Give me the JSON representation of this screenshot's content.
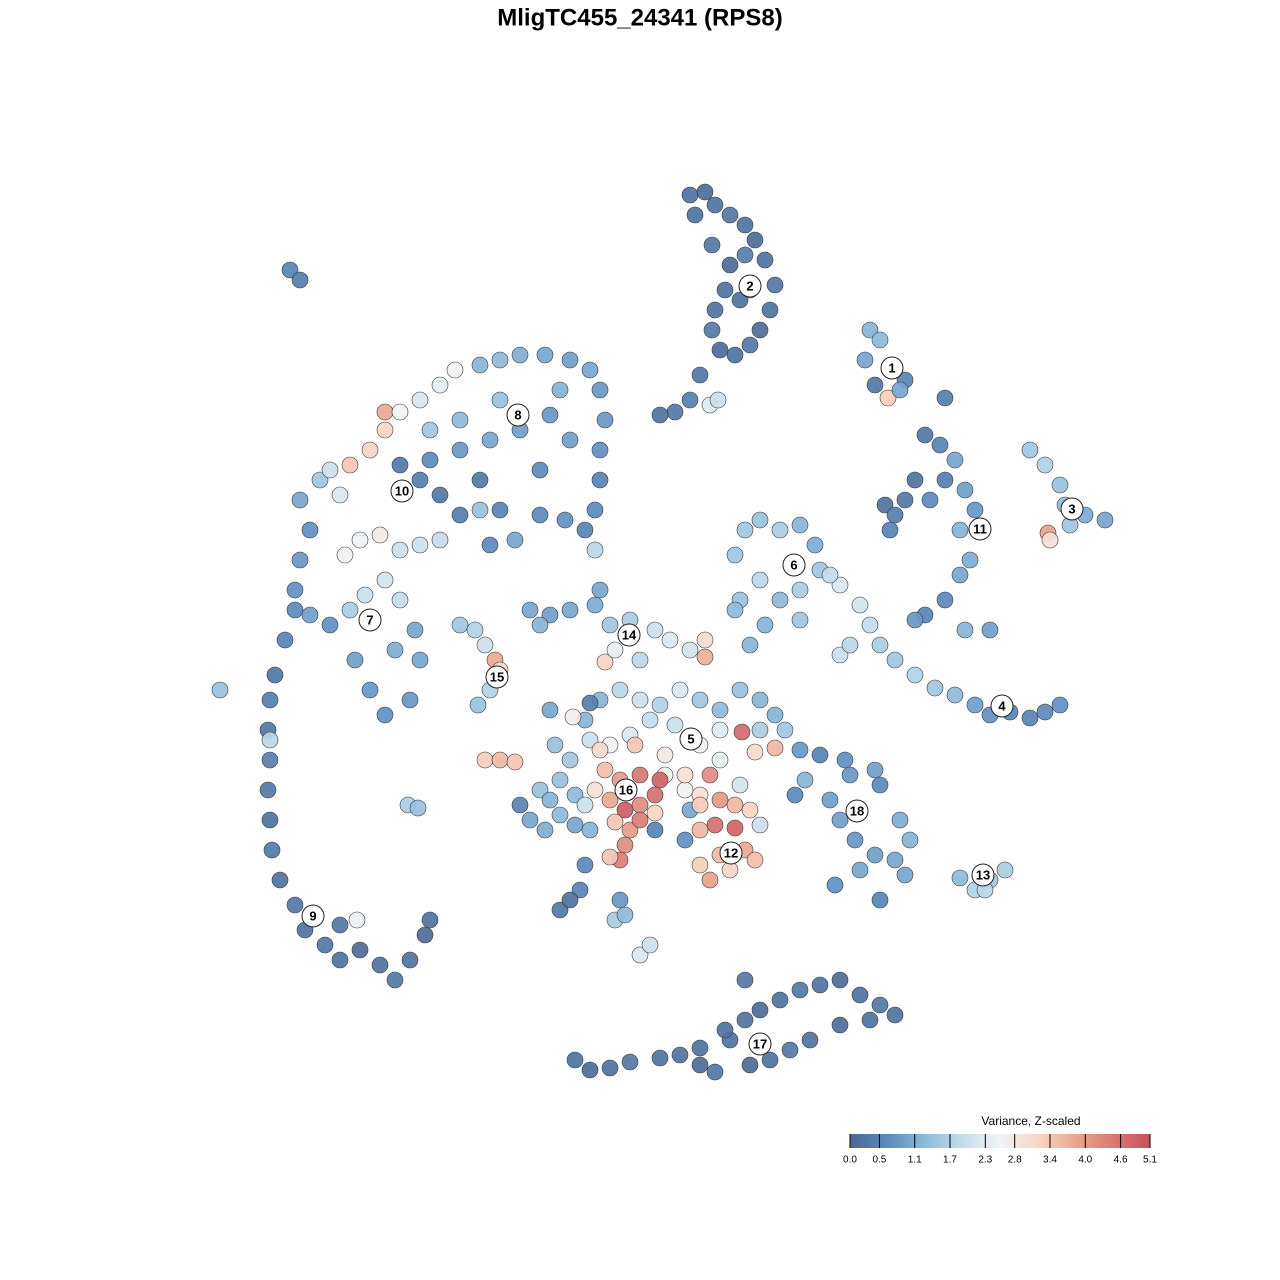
{
  "chart_data": {
    "type": "scatter",
    "title": "MligTC455_24341 (RPS8)",
    "xlim": [
      0,
      1280
    ],
    "ylim": [
      1280,
      0
    ],
    "series": [
      {
        "x": [
          690,
          705,
          715,
          730,
          745,
          755,
          765,
          775,
          770,
          760,
          750,
          735,
          720,
          712,
          715,
          725,
          730,
          745,
          740,
          700,
          690,
          675,
          660,
          710,
          718,
          695,
          750,
          712
        ],
        "y": [
          195,
          192,
          205,
          215,
          225,
          240,
          260,
          285,
          310,
          330,
          345,
          355,
          350,
          330,
          310,
          290,
          265,
          255,
          300,
          375,
          400,
          412,
          415,
          405,
          400,
          215,
          290,
          245
        ],
        "values": [
          0.2,
          0.1,
          0.2,
          0.3,
          0.2,
          0.1,
          0.2,
          0.3,
          0.2,
          0.1,
          0.3,
          0.2,
          0.1,
          0.3,
          0.2,
          0.2,
          0.1,
          0.4,
          0.2,
          0.3,
          0.4,
          0.3,
          0.2,
          2.3,
          2.0,
          0.2,
          0.8,
          0.3
        ]
      },
      {
        "x": [
          870,
          880,
          865,
          890,
          905,
          875,
          888,
          900,
          945
        ],
        "y": [
          330,
          340,
          360,
          370,
          380,
          385,
          398,
          390,
          398
        ],
        "values": [
          1.2,
          1.3,
          1.0,
          0.6,
          0.5,
          0.3,
          3.3,
          1.0,
          0.4
        ]
      },
      {
        "x": [
          925,
          940,
          955,
          945,
          965,
          930,
          905,
          885,
          895,
          975,
          960,
          970,
          960,
          945,
          925,
          915,
          965,
          990,
          915,
          890
        ],
        "y": [
          435,
          445,
          460,
          480,
          490,
          500,
          500,
          505,
          515,
          510,
          530,
          560,
          575,
          600,
          615,
          620,
          630,
          630,
          480,
          530
        ],
        "values": [
          0.3,
          0.5,
          1.0,
          0.4,
          0.9,
          0.6,
          0.3,
          0.2,
          0.4,
          0.8,
          1.2,
          1.1,
          1.0,
          0.6,
          0.5,
          0.8,
          1.2,
          0.9,
          0.2,
          0.5
        ]
      },
      {
        "x": [
          1030,
          1045,
          1065,
          1085,
          1105,
          1070,
          1048,
          1050,
          1060
        ],
        "y": [
          450,
          465,
          505,
          515,
          520,
          525,
          533,
          540,
          485
        ],
        "values": [
          1.5,
          1.7,
          1.3,
          1.1,
          1.0,
          1.5,
          3.9,
          3.0,
          1.4
        ]
      },
      {
        "x": [
          745,
          760,
          780,
          800,
          815,
          820,
          840,
          800,
          780,
          760,
          735,
          740,
          765,
          750,
          735,
          800,
          830
        ],
        "y": [
          530,
          520,
          530,
          525,
          545,
          570,
          585,
          590,
          600,
          580,
          555,
          600,
          625,
          645,
          610,
          620,
          575
        ],
        "values": [
          1.5,
          1.4,
          1.6,
          1.2,
          1.1,
          1.5,
          2.2,
          1.6,
          1.3,
          1.8,
          1.5,
          1.4,
          1.2,
          1.2,
          1.3,
          1.5,
          1.9
        ]
      },
      {
        "x": [
          860,
          870,
          880,
          895,
          915,
          935,
          955,
          975,
          990,
          1010,
          1030,
          1045,
          1060,
          840,
          850
        ],
        "y": [
          605,
          625,
          645,
          660,
          675,
          688,
          695,
          705,
          715,
          712,
          718,
          712,
          705,
          655,
          645
        ],
        "values": [
          2.1,
          1.9,
          1.6,
          1.5,
          1.7,
          1.5,
          1.3,
          0.9,
          0.7,
          0.5,
          0.5,
          0.6,
          0.7,
          2.0,
          1.8
        ]
      },
      {
        "x": [
          800,
          820,
          845,
          850,
          875,
          880,
          830,
          840,
          855,
          875,
          860,
          835,
          880,
          900,
          910,
          895,
          905,
          795,
          805
        ],
        "y": [
          750,
          755,
          760,
          775,
          770,
          785,
          800,
          820,
          840,
          855,
          870,
          885,
          900,
          820,
          840,
          860,
          875,
          795,
          780
        ],
        "values": [
          0.8,
          0.5,
          0.7,
          0.8,
          0.9,
          0.6,
          0.9,
          0.9,
          0.8,
          0.9,
          1.0,
          0.7,
          0.5,
          1.1,
          1.2,
          1.0,
          1.0,
          0.6,
          1.2
        ]
      },
      {
        "x": [
          960,
          975,
          990,
          1005,
          985
        ],
        "y": [
          878,
          890,
          880,
          870,
          890
        ],
        "values": [
          1.3,
          1.7,
          1.5,
          1.6,
          1.8
        ]
      },
      {
        "x": [
          575,
          590,
          610,
          630,
          660,
          680,
          700,
          715,
          730,
          745,
          760,
          780,
          800,
          820,
          840,
          860,
          880,
          895,
          870,
          840,
          810,
          790,
          770,
          750,
          725,
          745,
          700
        ],
        "y": [
          1060,
          1070,
          1068,
          1062,
          1058,
          1055,
          1065,
          1072,
          1040,
          1020,
          1010,
          1000,
          990,
          985,
          980,
          995,
          1005,
          1015,
          1020,
          1025,
          1040,
          1050,
          1060,
          1065,
          1030,
          980,
          1048
        ],
        "values": [
          0.2,
          0.1,
          0.2,
          0.3,
          0.2,
          0.2,
          0.1,
          0.3,
          0.2,
          0.2,
          0.1,
          0.2,
          0.3,
          0.2,
          0.1,
          0.2,
          0.3,
          0.2,
          0.2,
          0.1,
          0.2,
          0.3,
          0.2,
          0.1,
          0.2,
          0.3,
          0.2
        ]
      },
      {
        "x": [
          290,
          300,
          275,
          270,
          268,
          270,
          268,
          270,
          272,
          280,
          295,
          305,
          325,
          340,
          360,
          380,
          395,
          410,
          425,
          430,
          340,
          357,
          285,
          295,
          270
        ],
        "y": [
          270,
          280,
          675,
          700,
          730,
          760,
          790,
          820,
          850,
          880,
          905,
          930,
          945,
          960,
          950,
          965,
          980,
          960,
          935,
          920,
          925,
          920,
          640,
          610,
          740
        ],
        "values": [
          0.5,
          0.4,
          0.3,
          0.4,
          0.3,
          0.4,
          0.3,
          0.2,
          0.3,
          0.2,
          0.3,
          0.2,
          0.3,
          0.2,
          0.1,
          0.2,
          0.3,
          0.2,
          0.1,
          0.2,
          0.3,
          2.5,
          0.5,
          0.6,
          1.8
        ]
      },
      {
        "x": [
          300,
          310,
          300,
          295,
          310,
          330,
          350,
          365,
          385,
          400,
          355,
          370,
          385,
          410,
          420,
          395,
          345,
          360,
          380,
          400,
          320,
          340,
          350,
          370,
          385,
          385,
          400,
          420,
          440,
          455,
          330,
          415
        ],
        "y": [
          500,
          530,
          560,
          590,
          615,
          625,
          610,
          595,
          580,
          600,
          660,
          690,
          715,
          700,
          660,
          650,
          555,
          540,
          535,
          550,
          480,
          495,
          465,
          450,
          430,
          412,
          412,
          400,
          385,
          370,
          470,
          630
        ],
        "values": [
          1.0,
          0.7,
          0.8,
          0.7,
          0.9,
          0.7,
          1.6,
          2.0,
          2.1,
          1.9,
          0.9,
          0.8,
          0.7,
          0.8,
          1.0,
          1.1,
          2.6,
          2.5,
          2.8,
          2.0,
          1.5,
          2.2,
          3.4,
          3.2,
          3.2,
          3.8,
          2.6,
          2.2,
          2.4,
          2.6,
          2.0,
          1.0
        ]
      },
      {
        "x": [
          480,
          500,
          520,
          545,
          570,
          590,
          600,
          605,
          600,
          600,
          595,
          585,
          565,
          540,
          500,
          460,
          440,
          420,
          400,
          430,
          460,
          490,
          520,
          550,
          570,
          540,
          480,
          460,
          430,
          500,
          560,
          490,
          515,
          595,
          480,
          440,
          420
        ],
        "y": [
          365,
          360,
          355,
          355,
          360,
          370,
          390,
          420,
          450,
          480,
          510,
          530,
          520,
          515,
          510,
          515,
          495,
          480,
          465,
          460,
          450,
          440,
          430,
          415,
          440,
          470,
          480,
          420,
          430,
          400,
          390,
          545,
          540,
          550,
          510,
          540,
          545
        ],
        "values": [
          1.2,
          1.3,
          1.1,
          1.0,
          0.9,
          1.0,
          0.8,
          0.8,
          0.7,
          0.5,
          0.6,
          0.5,
          0.7,
          0.6,
          0.5,
          0.4,
          0.3,
          0.4,
          0.3,
          0.6,
          0.8,
          1.0,
          0.9,
          0.8,
          0.9,
          0.6,
          0.3,
          1.3,
          1.5,
          1.4,
          1.2,
          0.6,
          1.0,
          1.8,
          1.4,
          1.9,
          2.0
        ]
      },
      {
        "x": [
          460,
          475,
          485,
          495,
          500,
          490,
          478,
          220,
          408,
          418,
          485,
          500,
          515
        ],
        "y": [
          625,
          630,
          645,
          660,
          670,
          690,
          705,
          690,
          805,
          808,
          760,
          760,
          762
        ],
        "values": [
          1.5,
          1.7,
          2.0,
          3.8,
          3.1,
          1.7,
          1.4,
          1.4,
          1.6,
          1.4,
          3.3,
          3.6,
          3.4
        ]
      },
      {
        "x": [
          530,
          550,
          570,
          595,
          610,
          630,
          655,
          670,
          690,
          705,
          705,
          605,
          615,
          640,
          540,
          600
        ],
        "y": [
          610,
          615,
          610,
          605,
          625,
          620,
          630,
          640,
          650,
          640,
          657,
          662,
          650,
          660,
          625,
          590
        ],
        "values": [
          1.0,
          0.9,
          1.0,
          1.1,
          1.5,
          1.6,
          2.0,
          2.2,
          2.1,
          3.1,
          3.7,
          3.2,
          2.4,
          1.8,
          1.2,
          1.0
        ]
      },
      {
        "x": [
          520,
          530,
          545,
          560,
          575,
          590,
          540,
          550,
          585,
          580,
          560,
          570,
          620,
          615,
          625,
          640,
          650,
          655,
          685
        ],
        "y": [
          805,
          820,
          830,
          815,
          825,
          830,
          790,
          800,
          865,
          890,
          910,
          900,
          900,
          920,
          915,
          955,
          945,
          830,
          790
        ],
        "values": [
          0.5,
          1.0,
          1.1,
          1.3,
          1.0,
          1.2,
          1.4,
          1.2,
          0.6,
          0.5,
          0.3,
          0.2,
          0.8,
          1.6,
          1.3,
          2.2,
          2.0,
          0.5,
          2.6
        ]
      },
      {
        "x": [
          600,
          620,
          640,
          660,
          680,
          700,
          720,
          740,
          760,
          775,
          785,
          760,
          720,
          700,
          675,
          650,
          630,
          610,
          590,
          570,
          555,
          550,
          585,
          590,
          742,
          775,
          755,
          740,
          720,
          685,
          665,
          710,
          700,
          690,
          560,
          575,
          635,
          665,
          573,
          600
        ],
        "y": [
          700,
          690,
          700,
          705,
          690,
          700,
          710,
          690,
          700,
          715,
          730,
          730,
          730,
          745,
          725,
          720,
          735,
          745,
          740,
          760,
          745,
          710,
          720,
          703,
          732,
          748,
          752,
          785,
          760,
          775,
          775,
          775,
          795,
          810,
          780,
          795,
          745,
          755,
          717,
          750
        ],
        "values": [
          1.2,
          1.8,
          2.0,
          1.7,
          2.2,
          1.5,
          1.3,
          1.4,
          1.2,
          1.2,
          1.5,
          1.6,
          2.3,
          2.5,
          2.0,
          1.9,
          2.2,
          2.6,
          2.0,
          1.5,
          1.4,
          1.0,
          1.2,
          0.4,
          4.7,
          3.6,
          3.1,
          2.1,
          2.4,
          3.0,
          2.6,
          4.2,
          3.0,
          1.0,
          1.4,
          1.3,
          3.4,
          2.8,
          2.7,
          3.1
        ]
      },
      {
        "x": [
          605,
          620,
          640,
          660,
          655,
          640,
          625,
          610,
          595,
          615,
          630,
          655,
          625,
          620,
          610,
          640,
          585
        ],
        "y": [
          770,
          780,
          775,
          780,
          795,
          805,
          810,
          800,
          790,
          822,
          830,
          813,
          845,
          860,
          857,
          820,
          805
        ],
        "values": [
          3.5,
          4.0,
          4.5,
          4.8,
          4.6,
          4.2,
          4.9,
          3.8,
          3.0,
          3.4,
          4.0,
          3.2,
          4.2,
          4.4,
          3.4,
          4.4,
          2.0
        ]
      },
      {
        "x": [
          700,
          720,
          735,
          750,
          715,
          735,
          700,
          745,
          755,
          730,
          710,
          700,
          720,
          760,
          685
        ],
        "y": [
          805,
          800,
          805,
          810,
          825,
          828,
          830,
          850,
          860,
          870,
          880,
          865,
          855,
          825,
          840
        ],
        "values": [
          3.3,
          4.0,
          3.6,
          3.2,
          4.6,
          4.8,
          3.6,
          3.8,
          3.5,
          3.2,
          3.9,
          3.3,
          3.6,
          2.0,
          0.7
        ]
      }
    ],
    "cluster_labels": {
      "labels": [
        "1",
        "2",
        "3",
        "4",
        "5",
        "6",
        "7",
        "8",
        "9",
        "10",
        "11",
        "12",
        "13",
        "14",
        "15",
        "16",
        "17",
        "18"
      ],
      "x": [
        892,
        750,
        1072,
        1002,
        691,
        794,
        370,
        518,
        313,
        402,
        980,
        731,
        983,
        629,
        497,
        626,
        760,
        857
      ],
      "y": [
        368,
        286,
        509,
        706,
        739,
        565,
        620,
        415,
        916,
        491,
        529,
        853,
        875,
        635,
        677,
        790,
        1044,
        811
      ]
    },
    "colorbar": {
      "title": "Variance, Z-scaled",
      "lim": [
        0,
        5.1
      ],
      "colors": [
        "#4a6892",
        "#5b8bbf",
        "#8dbad9",
        "#c5ddeb",
        "#f1f4f6",
        "#f7d6c7",
        "#eaa690",
        "#d97a74",
        "#c8505e"
      ],
      "ticks": [
        {
          "value": 0,
          "label": "0.0"
        },
        0.5,
        1.1,
        1.7,
        2.3,
        2.8,
        3.4,
        {
          "value": 4,
          "label": "4.0"
        },
        4.6,
        5.1
      ]
    }
  }
}
